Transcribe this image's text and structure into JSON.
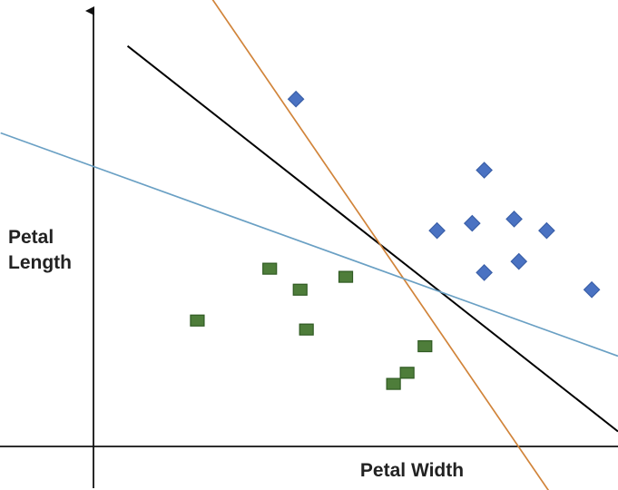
{
  "chart_data": {
    "type": "scatter",
    "title": "",
    "xlabel": "Petal Width",
    "ylabel_lines": [
      "Petal",
      "Length"
    ],
    "xlim": [
      0,
      100
    ],
    "ylim": [
      0,
      100
    ],
    "grid": false,
    "legend": "none",
    "series": [
      {
        "marker": "square",
        "color": "#4e7d3a",
        "points": [
          [
            19.8,
            29.4
          ],
          [
            33.6,
            41.5
          ],
          [
            39.4,
            36.6
          ],
          [
            48.1,
            39.6
          ],
          [
            40.6,
            27.3
          ],
          [
            63.2,
            23.4
          ],
          [
            59.8,
            17.2
          ],
          [
            57.2,
            14.6
          ]
        ]
      },
      {
        "marker": "diamond",
        "color": "#4a72c2",
        "points": [
          [
            38.6,
            81.1
          ],
          [
            74.5,
            64.5
          ],
          [
            65.5,
            50.4
          ],
          [
            72.2,
            52.1
          ],
          [
            80.2,
            53.1
          ],
          [
            86.4,
            50.4
          ],
          [
            74.5,
            40.6
          ],
          [
            81.1,
            43.2
          ],
          [
            95.0,
            36.6
          ]
        ]
      }
    ],
    "lines": [
      {
        "color": "#000000",
        "from": [
          6.5,
          93.5
        ],
        "to": [
          100,
          3.5
        ]
      },
      {
        "color": "#d1843a",
        "from": [
          17.7,
          113.3
        ],
        "to": [
          87.6,
          -11.8
        ]
      },
      {
        "color": "#6aa0c4",
        "from": [
          -17.7,
          73.2
        ],
        "to": [
          100,
          21.1
        ]
      }
    ],
    "colors": {
      "axis": "#111111",
      "label": "#222222"
    }
  }
}
